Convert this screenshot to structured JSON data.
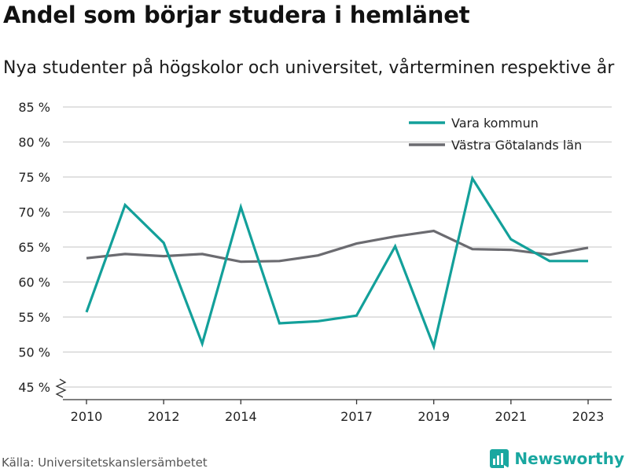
{
  "header": {
    "title": "Andel som börjar studera i hemlänet",
    "subtitle": "Nya studenter på högskolor och universitet, vårterminen respektive år"
  },
  "footer": {
    "source": "Källa: Universitetskanslersämbetet",
    "brand": "Newsworthy",
    "brand_icon": "newsworthy-logo-icon"
  },
  "colors": {
    "vara": "#13a09a",
    "vastra": "#6b6b70",
    "grid": "#cfcfcf",
    "axis": "#333333",
    "brand": "#19a7a0"
  },
  "chart_data": {
    "type": "line",
    "x": [
      2010,
      2011,
      2012,
      2013,
      2014,
      2015,
      2016,
      2017,
      2018,
      2019,
      2020,
      2021,
      2022,
      2023
    ],
    "series": [
      {
        "name": "Vara kommun",
        "color": "#13a09a",
        "values": [
          55.7,
          71.0,
          65.6,
          51.2,
          70.7,
          54.1,
          54.4,
          55.2,
          65.1,
          50.8,
          74.8,
          66.1,
          63.0,
          63.0
        ]
      },
      {
        "name": "Västra Götalands län",
        "color": "#6b6b70",
        "values": [
          63.4,
          64.0,
          63.7,
          64.0,
          62.9,
          63.0,
          63.8,
          65.5,
          66.5,
          67.3,
          64.7,
          64.6,
          63.9,
          64.9
        ]
      }
    ],
    "yticks": [
      45,
      50,
      55,
      60,
      65,
      70,
      75,
      80,
      85
    ],
    "ytick_labels": [
      "45 %",
      "50 %",
      "55 %",
      "60 %",
      "65 %",
      "70 %",
      "75 %",
      "80 %",
      "85 %"
    ],
    "xticks": [
      2010,
      2012,
      2014,
      2017,
      2019,
      2021,
      2023
    ],
    "xtick_labels": [
      "2010",
      "2012",
      "2014",
      "2017",
      "2019",
      "2021",
      "2023"
    ],
    "ylim": [
      45,
      85
    ],
    "xlim": [
      2010,
      2023
    ],
    "y_axis_break": true,
    "grid": true,
    "legend": "top-right",
    "xlabel": "",
    "ylabel": ""
  }
}
